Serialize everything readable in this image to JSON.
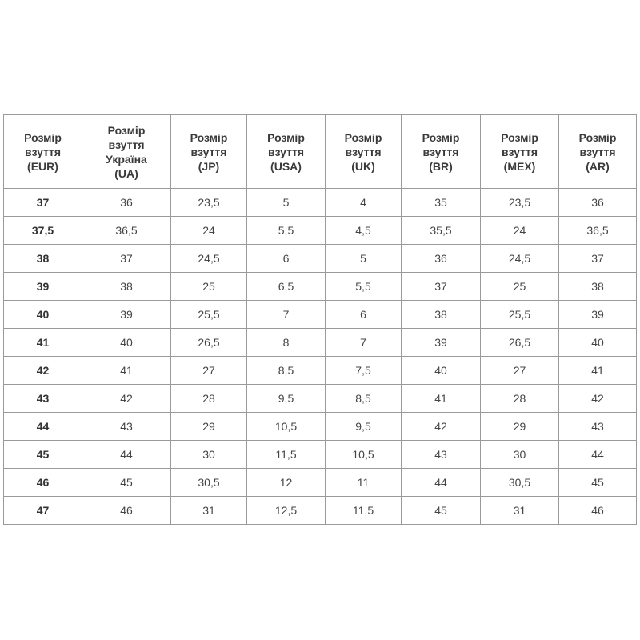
{
  "table": {
    "headers": [
      [
        "Розмір",
        "взуття",
        "(EUR)"
      ],
      [
        "Розмір",
        "взуття",
        "Україна",
        "(UA)"
      ],
      [
        "Розмір",
        "взуття",
        "(JP)"
      ],
      [
        "Розмір",
        "взуття",
        "(USA)"
      ],
      [
        "Розмір",
        "взуття",
        "(UK)"
      ],
      [
        "Розмір",
        "взуття",
        "(BR)"
      ],
      [
        "Розмір",
        "взуття",
        "(MEX)"
      ],
      [
        "Розмір",
        "взуття",
        "(AR)"
      ]
    ],
    "rows": [
      [
        "37",
        "36",
        "23,5",
        "5",
        "4",
        "35",
        "23,5",
        "36"
      ],
      [
        "37,5",
        "36,5",
        "24",
        "5,5",
        "4,5",
        "35,5",
        "24",
        "36,5"
      ],
      [
        "38",
        "37",
        "24,5",
        "6",
        "5",
        "36",
        "24,5",
        "37"
      ],
      [
        "39",
        "38",
        "25",
        "6,5",
        "5,5",
        "37",
        "25",
        "38"
      ],
      [
        "40",
        "39",
        "25,5",
        "7",
        "6",
        "38",
        "25,5",
        "39"
      ],
      [
        "41",
        "40",
        "26,5",
        "8",
        "7",
        "39",
        "26,5",
        "40"
      ],
      [
        "42",
        "41",
        "27",
        "8,5",
        "7,5",
        "40",
        "27",
        "41"
      ],
      [
        "43",
        "42",
        "28",
        "9,5",
        "8,5",
        "41",
        "28",
        "42"
      ],
      [
        "44",
        "43",
        "29",
        "10,5",
        "9,5",
        "42",
        "29",
        "43"
      ],
      [
        "45",
        "44",
        "30",
        "11,5",
        "10,5",
        "43",
        "30",
        "44"
      ],
      [
        "46",
        "45",
        "30,5",
        "12",
        "11",
        "44",
        "30,5",
        "45"
      ],
      [
        "47",
        "46",
        "31",
        "12,5",
        "11,5",
        "45",
        "31",
        "46"
      ]
    ]
  }
}
